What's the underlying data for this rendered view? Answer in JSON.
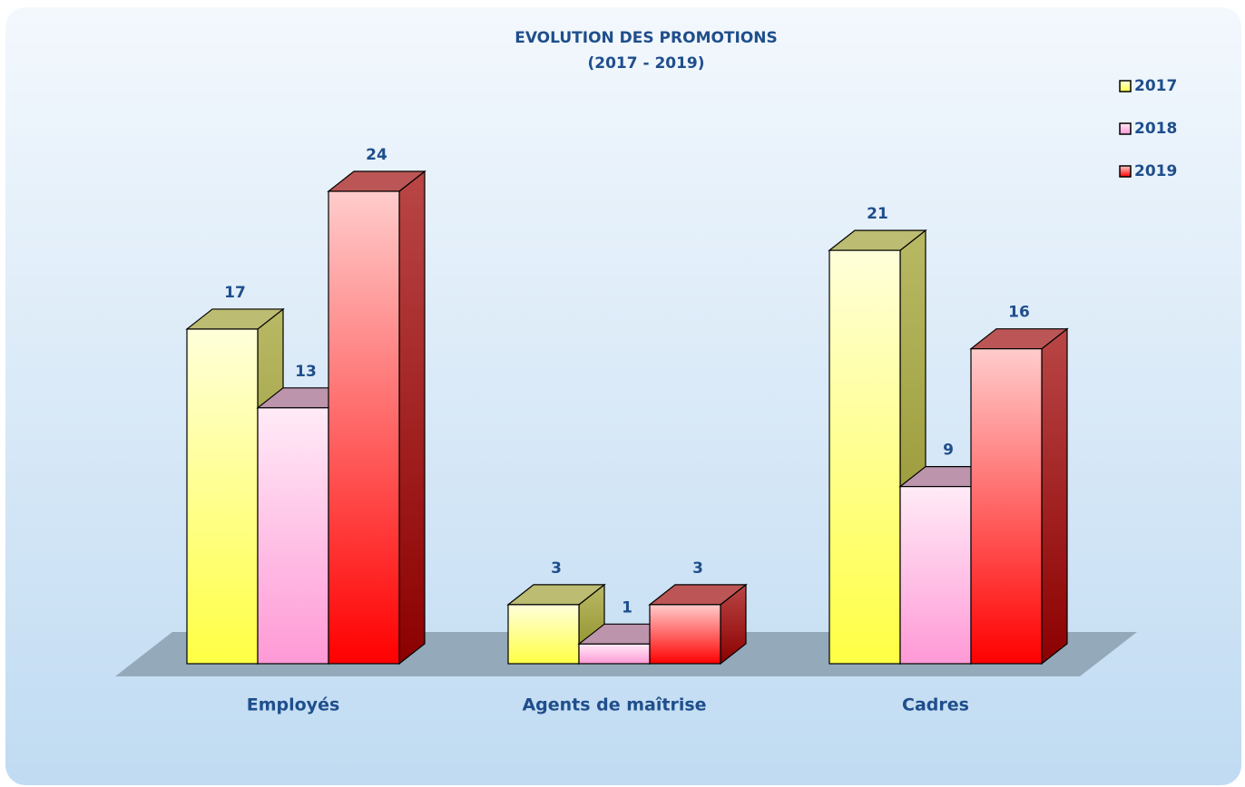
{
  "chart_data": {
    "type": "bar3d",
    "title": "EVOLUTION DES PROMOTIONS",
    "subtitle": "(2017 - 2019)",
    "categories": [
      "Employés",
      "Agents de maîtrise",
      "Cadres"
    ],
    "series": [
      {
        "name": "2017",
        "color": "#ffff44",
        "values": [
          17,
          3,
          21
        ]
      },
      {
        "name": "2018",
        "color": "#ff99d6",
        "values": [
          13,
          1,
          9
        ]
      },
      {
        "name": "2019",
        "color": "#ff0000",
        "values": [
          24,
          3,
          16
        ]
      }
    ],
    "legend": "right"
  }
}
